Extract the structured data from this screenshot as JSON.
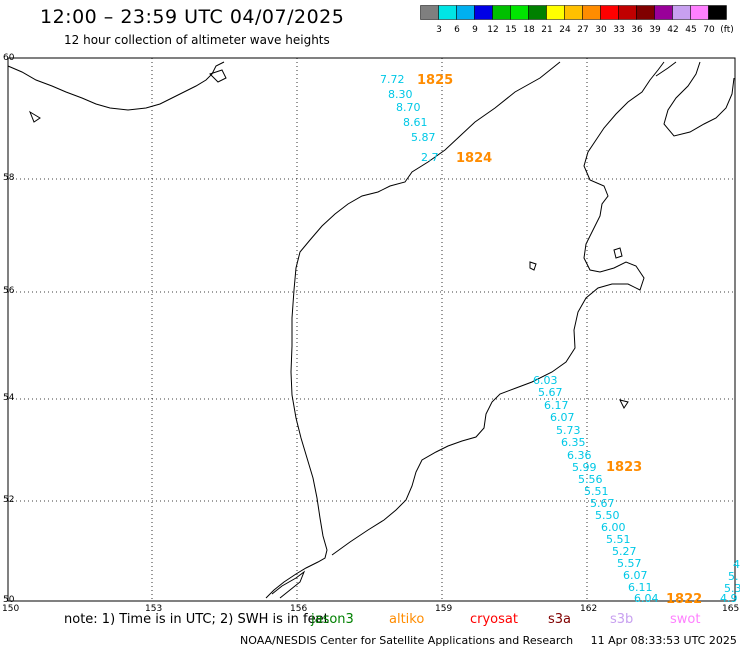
{
  "header": {
    "title": "12:00 – 23:59 UTC 04/07/2025",
    "subtitle": "12 hour collection of altimeter wave heights"
  },
  "legend": {
    "colors": [
      "#7f7f7f",
      "#00e5e5",
      "#00b0f0",
      "#0000e6",
      "#00bf00",
      "#00e600",
      "#008000",
      "#ffff00",
      "#ffc000",
      "#ff8c00",
      "#ff0000",
      "#c00000",
      "#800000",
      "#990099",
      "#c8a0f0",
      "#ff80ff",
      "#000000"
    ],
    "labels": [
      "3",
      "6",
      "9",
      "12",
      "15",
      "18",
      "21",
      "24",
      "27",
      "30",
      "33",
      "36",
      "39",
      "42",
      "45",
      "70",
      "(ft)"
    ]
  },
  "axes": {
    "x_ticks": [
      "150",
      "153",
      "156",
      "159",
      "162",
      "165"
    ],
    "y_ticks": [
      "60",
      "58",
      "56",
      "54",
      "52",
      "50"
    ]
  },
  "track_labels": [
    {
      "text": "1825",
      "color": "#ff8c00"
    },
    {
      "text": "1824",
      "color": "#ff8c00"
    },
    {
      "text": "1823",
      "color": "#ff8c00"
    },
    {
      "text": "1822",
      "color": "#ff8c00"
    }
  ],
  "wave_values": [
    "7.72",
    "8.30",
    "8.70",
    "8.61",
    "5.87",
    "2.7",
    "6.03",
    "5.67",
    "6.17",
    "6.07",
    "5.73",
    "6.35",
    "6.36",
    "5.99",
    "5.56",
    "5.51",
    "5.67",
    "5.50",
    "6.00",
    "5.51",
    "5.27",
    "5.57",
    "6.07",
    "6.11",
    "6.04",
    "4",
    "5.",
    "5.3",
    "4.9"
  ],
  "wave_color": "#00c8e6",
  "note": {
    "text": "note: 1) Time is in UTC; 2) SWH is in feet"
  },
  "missions": [
    {
      "name": "jason3",
      "color": "#008000"
    },
    {
      "name": "altiko",
      "color": "#ff8c00"
    },
    {
      "name": "cryosat",
      "color": "#ff0000"
    },
    {
      "name": "s3a",
      "color": "#800000"
    },
    {
      "name": "s3b",
      "color": "#c8a0f0"
    },
    {
      "name": "swot",
      "color": "#ff80ff"
    }
  ],
  "footer": {
    "credit": "NOAA/NESDIS Center for Satellite Applications and Research",
    "timestamp": "11 Apr 08:33:53 UTC 2025"
  }
}
